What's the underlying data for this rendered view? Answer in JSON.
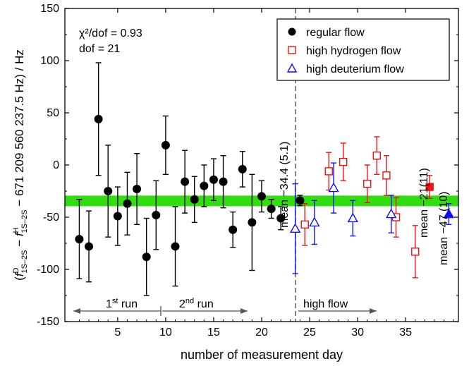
{
  "chart_data": {
    "type": "scatter",
    "xlabel": "number of measurement day",
    "ylabel": {
      "open": "(",
      "f": "f",
      "supD": "D",
      "sub": "1S–2S",
      "minus": " − ",
      "supH": "H",
      "tail": " − 671 209 560 237.5 Hz) / Hz"
    },
    "xlim": [
      -0.5,
      40.5
    ],
    "ylim": [
      -150,
      150
    ],
    "xticks": [
      5,
      10,
      15,
      20,
      25,
      30,
      35
    ],
    "yticks": [
      -150,
      -100,
      -50,
      0,
      50,
      100,
      150
    ],
    "grid": false,
    "legend_position": "top-right",
    "fit_line": {
      "y": -34.4,
      "band": 5.1,
      "x_start": -0.5,
      "x_end": 40.5,
      "color": "#33dd11"
    },
    "annotations": {
      "chi2": "χ²/dof = 0.93",
      "dof": "dof = 21",
      "mean_regular": "mean −34.4 (5.1)",
      "mean_h": "mean −21(11)",
      "mean_d": "mean −47 (10)",
      "run1_base": "1",
      "run1_sup": "st",
      "run1_rest": " run",
      "run2_base": "2",
      "run2_sup": "nd",
      "run2_rest": " run",
      "highflow": "high flow"
    },
    "series": [
      {
        "name": "regular flow",
        "marker": "circle",
        "filled": true,
        "color": "#000000",
        "points": [
          {
            "x": 1,
            "y": -71,
            "err": 38
          },
          {
            "x": 2,
            "y": -78,
            "err": 34
          },
          {
            "x": 3,
            "y": 44,
            "err": 54
          },
          {
            "x": 4,
            "y": -25,
            "err": 44
          },
          {
            "x": 5,
            "y": -49,
            "err": 28
          },
          {
            "x": 6,
            "y": -37,
            "err": 30
          },
          {
            "x": 7,
            "y": -23,
            "err": 34
          },
          {
            "x": 8,
            "y": -88,
            "err": 37
          },
          {
            "x": 9,
            "y": -48,
            "err": 33
          },
          {
            "x": 10,
            "y": 19,
            "err": 28
          },
          {
            "x": 11,
            "y": -78,
            "err": 38
          },
          {
            "x": 12,
            "y": -16,
            "err": 30
          },
          {
            "x": 13,
            "y": -33,
            "err": 22
          },
          {
            "x": 14,
            "y": -20,
            "err": 20
          },
          {
            "x": 15,
            "y": -14,
            "err": 20
          },
          {
            "x": 16,
            "y": -16,
            "err": 25
          },
          {
            "x": 17,
            "y": -62,
            "err": 17
          },
          {
            "x": 18,
            "y": -4,
            "err": 17
          },
          {
            "x": 19,
            "y": -55,
            "err": 46
          },
          {
            "x": 20,
            "y": -30,
            "err": 15
          },
          {
            "x": 21,
            "y": -42,
            "err": 9
          },
          {
            "x": 22,
            "y": -51,
            "err": 11
          },
          {
            "x": 24,
            "y": -34,
            "err": 5
          }
        ]
      },
      {
        "name": "high hydrogen flow",
        "marker": "square",
        "filled": false,
        "color": "#ee1111",
        "points": [
          {
            "x": 24.5,
            "y": -57,
            "err": 20
          },
          {
            "x": 27,
            "y": -6,
            "err": 18
          },
          {
            "x": 28.5,
            "y": 3,
            "err": 18
          },
          {
            "x": 31,
            "y": -18,
            "err": 18
          },
          {
            "x": 32,
            "y": 9,
            "err": 18
          },
          {
            "x": 33,
            "y": -10,
            "err": 19
          },
          {
            "x": 34,
            "y": -50,
            "err": 19
          },
          {
            "x": 36,
            "y": -83,
            "err": 25
          }
        ],
        "mean_point": {
          "x": 37.5,
          "y": -21,
          "err": 11
        }
      },
      {
        "name": "high deuterium flow",
        "marker": "triangle",
        "filled": false,
        "color": "#1111ee",
        "points": [
          {
            "x": 23.5,
            "y": -61,
            "err": 43
          },
          {
            "x": 25.5,
            "y": -55,
            "err": 21
          },
          {
            "x": 27.5,
            "y": -22,
            "err": 24
          },
          {
            "x": 29.5,
            "y": -51,
            "err": 17
          },
          {
            "x": 33.5,
            "y": -47,
            "err": 18
          }
        ],
        "mean_point": {
          "x": 39.5,
          "y": -47,
          "err": 10
        }
      }
    ]
  }
}
